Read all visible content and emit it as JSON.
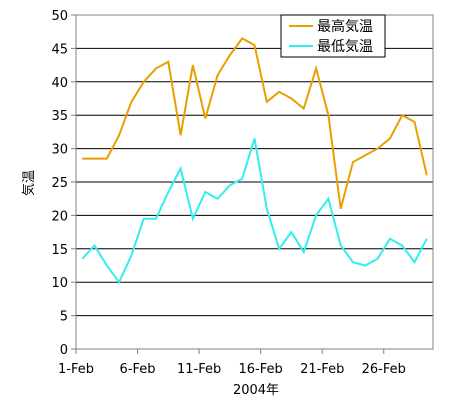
{
  "chart_data": {
    "type": "line",
    "xlabel": "2004年",
    "ylabel": "気温",
    "ylim": [
      0,
      50
    ],
    "yticks": [
      "0",
      "5",
      "10",
      "15",
      "20",
      "25",
      "30",
      "35",
      "40",
      "45",
      "50"
    ],
    "xtick_labels": [
      "1-Feb",
      "6-Feb",
      "11-Feb",
      "16-Feb",
      "21-Feb",
      "26-Feb"
    ],
    "xtick_days": [
      1,
      6,
      11,
      16,
      21,
      26
    ],
    "x": [
      1,
      2,
      3,
      4,
      5,
      6,
      7,
      8,
      9,
      10,
      11,
      12,
      13,
      14,
      15,
      16,
      17,
      18,
      19,
      20,
      21,
      22,
      23,
      24,
      25,
      26,
      27,
      28,
      29
    ],
    "grid": true,
    "legend": "top-right",
    "series": [
      {
        "name": "最高気温",
        "color": "#e8a000",
        "values": [
          28.5,
          28.5,
          28.5,
          32,
          37,
          40,
          42,
          43,
          32,
          42.5,
          34.5,
          41,
          44,
          46.5,
          45.5,
          37,
          38.5,
          37.5,
          36,
          42,
          35,
          21,
          28,
          29,
          30,
          31.5,
          35,
          34,
          26
        ]
      },
      {
        "name": "最低気温",
        "color": "#33eeee",
        "values": [
          13.5,
          15.5,
          12.5,
          10,
          14,
          19.5,
          19.5,
          23.5,
          27,
          19.5,
          23.5,
          22.5,
          24.5,
          25.5,
          31.5,
          21,
          15,
          17.5,
          14.5,
          20,
          22.5,
          15.5,
          13,
          12.5,
          13.5,
          16.5,
          15.5,
          13,
          16.5
        ]
      }
    ]
  }
}
